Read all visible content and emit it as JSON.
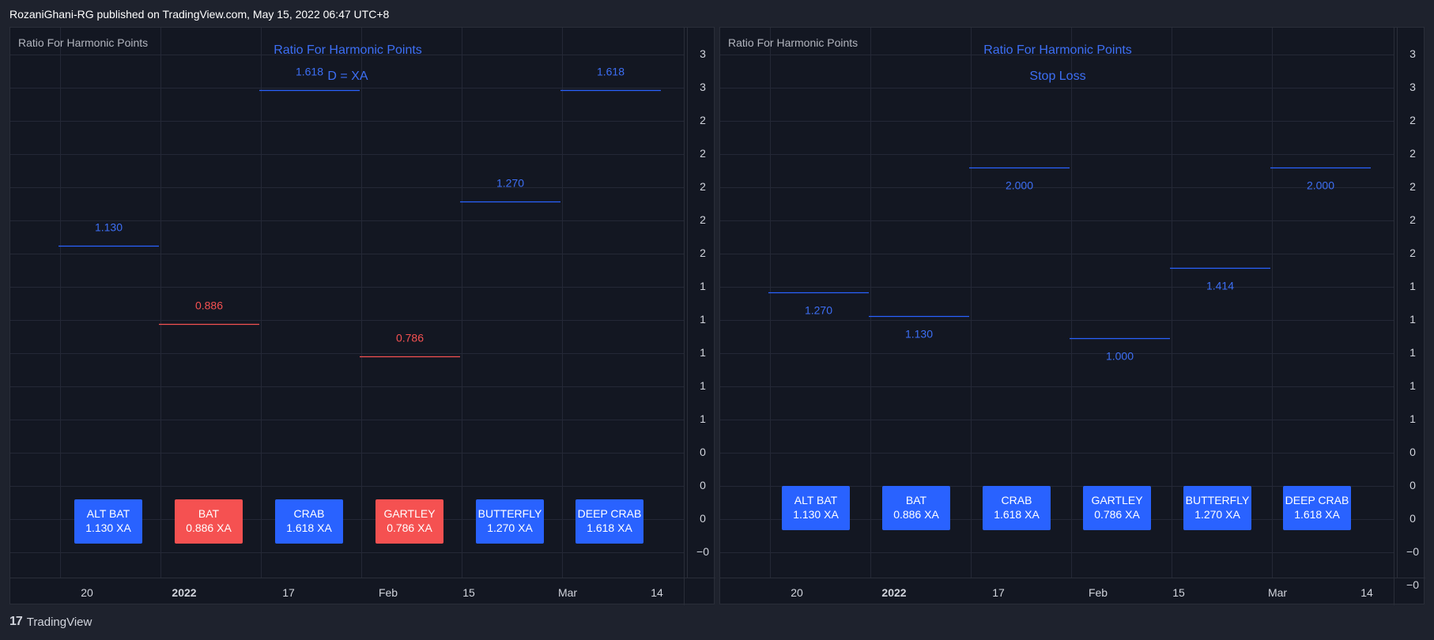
{
  "header": "RozaniGhani-RG published on TradingView.com, May 15, 2022 06:47 UTC+8",
  "footer": {
    "logo": "17",
    "brand": "TradingView"
  },
  "colors": {
    "blue": "#2962ff",
    "blue_text": "#3d6ff5",
    "red": "#f55151"
  },
  "chart_data": [
    {
      "type": "table",
      "indicator": "Ratio For Harmonic Points",
      "title": "Ratio For Harmonic Points",
      "subtitle": "D = XA",
      "x_ticks": [
        "20",
        "2022",
        "17",
        "Feb",
        "15",
        "Mar",
        "14"
      ],
      "y_ticks": [
        "3",
        "3",
        "2",
        "2",
        "2",
        "2",
        "2",
        "1",
        "1",
        "1",
        "1",
        "1",
        "0",
        "0",
        "0",
        "−0"
      ],
      "levels": [
        {
          "pattern": "ALT BAT",
          "value": 1.13,
          "label": "1.130",
          "color": "blue"
        },
        {
          "pattern": "BAT",
          "value": 0.886,
          "label": "0.886",
          "color": "red"
        },
        {
          "pattern": "CRAB",
          "value": 1.618,
          "label": "1.618",
          "color": "blue"
        },
        {
          "pattern": "GARTLEY",
          "value": 0.786,
          "label": "0.786",
          "color": "red"
        },
        {
          "pattern": "BUTTERFLY",
          "value": 1.27,
          "label": "1.270",
          "color": "blue"
        },
        {
          "pattern": "DEEP CRAB",
          "value": 1.618,
          "label": "1.618",
          "color": "blue"
        }
      ],
      "boxes": [
        {
          "name": "ALT BAT",
          "ratio": "1.130 XA",
          "color": "blue"
        },
        {
          "name": "BAT",
          "ratio": "0.886 XA",
          "color": "red"
        },
        {
          "name": "CRAB",
          "ratio": "1.618 XA",
          "color": "blue"
        },
        {
          "name": "GARTLEY",
          "ratio": "0.786 XA",
          "color": "red"
        },
        {
          "name": "BUTTERFLY",
          "ratio": "1.270 XA",
          "color": "blue"
        },
        {
          "name": "DEEP CRAB",
          "ratio": "1.618 XA",
          "color": "blue"
        }
      ]
    },
    {
      "type": "table",
      "indicator": "Ratio For Harmonic Points",
      "title": "Ratio For Harmonic Points",
      "subtitle": "Stop Loss",
      "x_ticks": [
        "20",
        "2022",
        "17",
        "Feb",
        "15",
        "Mar",
        "14"
      ],
      "y_ticks": [
        "3",
        "3",
        "2",
        "2",
        "2",
        "2",
        "2",
        "1",
        "1",
        "1",
        "1",
        "1",
        "0",
        "0",
        "0",
        "−0",
        "−0"
      ],
      "levels": [
        {
          "pattern": "ALT BAT",
          "value": 1.27,
          "label": "1.270",
          "color": "blue"
        },
        {
          "pattern": "BAT",
          "value": 1.13,
          "label": "1.130",
          "color": "blue"
        },
        {
          "pattern": "CRAB",
          "value": 2.0,
          "label": "2.000",
          "color": "blue"
        },
        {
          "pattern": "GARTLEY",
          "value": 1.0,
          "label": "1.000",
          "color": "blue"
        },
        {
          "pattern": "BUTTERFLY",
          "value": 1.414,
          "label": "1.414",
          "color": "blue"
        },
        {
          "pattern": "DEEP CRAB",
          "value": 2.0,
          "label": "2.000",
          "color": "blue"
        }
      ],
      "boxes": [
        {
          "name": "ALT BAT",
          "ratio": "1.130 XA",
          "color": "blue"
        },
        {
          "name": "BAT",
          "ratio": "0.886 XA",
          "color": "blue"
        },
        {
          "name": "CRAB",
          "ratio": "1.618 XA",
          "color": "blue"
        },
        {
          "name": "GARTLEY",
          "ratio": "0.786 XA",
          "color": "blue"
        },
        {
          "name": "BUTTERFLY",
          "ratio": "1.270 XA",
          "color": "blue"
        },
        {
          "name": "DEEP CRAB",
          "ratio": "1.618 XA",
          "color": "blue"
        }
      ]
    }
  ]
}
